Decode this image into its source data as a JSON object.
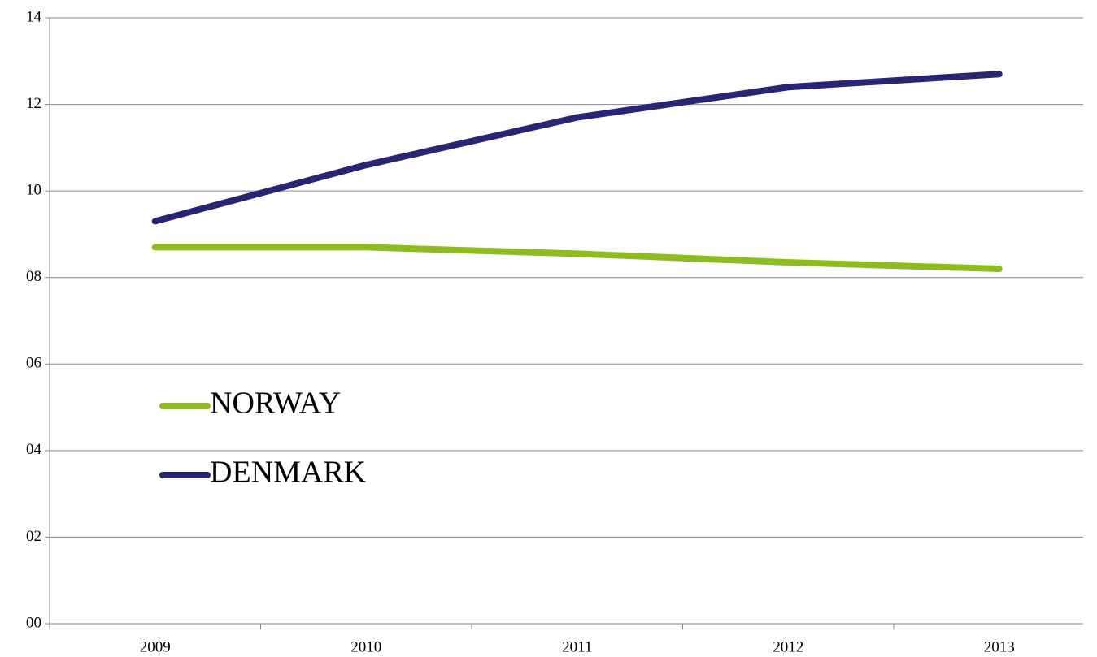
{
  "chart_data": {
    "type": "line",
    "categories": [
      "2009",
      "2010",
      "2011",
      "2012",
      "2013"
    ],
    "series": [
      {
        "name": "NORWAY",
        "color": "#8cbd1d",
        "values": [
          8.7,
          8.7,
          8.55,
          8.35,
          8.2
        ]
      },
      {
        "name": "DENMARK",
        "color": "#262673",
        "values": [
          9.3,
          10.6,
          11.7,
          12.4,
          12.7
        ]
      }
    ],
    "ylim": [
      0,
      14
    ],
    "yticks": [
      {
        "value": 0,
        "label": "00"
      },
      {
        "value": 2,
        "label": "02"
      },
      {
        "value": 4,
        "label": "04"
      },
      {
        "value": 6,
        "label": "06"
      },
      {
        "value": 8,
        "label": "08"
      },
      10,
      12,
      14
    ],
    "grid": true,
    "legend": "left"
  }
}
